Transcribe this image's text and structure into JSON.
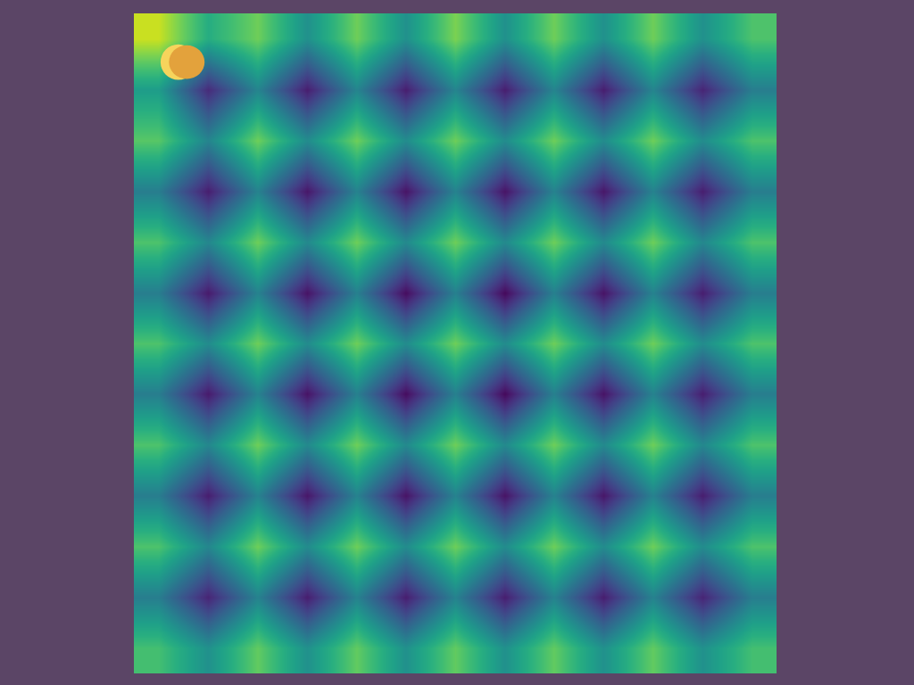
{
  "chart_data": {
    "type": "heatmap",
    "cells": [
      [
        0.92,
        0.62,
        0.78,
        0.5,
        0.78,
        0.5,
        0.8,
        0.5,
        0.78,
        0.5,
        0.78,
        0.5,
        0.72
      ],
      [
        0.55,
        0.12,
        0.45,
        0.08,
        0.45,
        0.08,
        0.45,
        0.08,
        0.45,
        0.08,
        0.45,
        0.1,
        0.42
      ],
      [
        0.74,
        0.45,
        0.78,
        0.48,
        0.78,
        0.48,
        0.78,
        0.48,
        0.78,
        0.48,
        0.78,
        0.48,
        0.72
      ],
      [
        0.42,
        0.08,
        0.44,
        0.06,
        0.44,
        0.05,
        0.44,
        0.05,
        0.44,
        0.06,
        0.44,
        0.08,
        0.42
      ],
      [
        0.72,
        0.46,
        0.78,
        0.47,
        0.78,
        0.47,
        0.78,
        0.47,
        0.78,
        0.47,
        0.78,
        0.46,
        0.72
      ],
      [
        0.42,
        0.07,
        0.44,
        0.05,
        0.43,
        0.03,
        0.43,
        0.02,
        0.43,
        0.05,
        0.44,
        0.08,
        0.42
      ],
      [
        0.72,
        0.48,
        0.78,
        0.48,
        0.78,
        0.48,
        0.78,
        0.48,
        0.78,
        0.48,
        0.78,
        0.48,
        0.72
      ],
      [
        0.42,
        0.07,
        0.44,
        0.05,
        0.43,
        0.03,
        0.43,
        0.02,
        0.43,
        0.05,
        0.44,
        0.08,
        0.42
      ],
      [
        0.72,
        0.46,
        0.78,
        0.47,
        0.78,
        0.47,
        0.78,
        0.47,
        0.78,
        0.47,
        0.78,
        0.46,
        0.72
      ],
      [
        0.42,
        0.08,
        0.44,
        0.06,
        0.44,
        0.05,
        0.44,
        0.05,
        0.44,
        0.06,
        0.44,
        0.08,
        0.42
      ],
      [
        0.72,
        0.46,
        0.78,
        0.48,
        0.78,
        0.48,
        0.78,
        0.48,
        0.78,
        0.48,
        0.78,
        0.48,
        0.72
      ],
      [
        0.42,
        0.1,
        0.44,
        0.08,
        0.44,
        0.08,
        0.44,
        0.08,
        0.44,
        0.08,
        0.44,
        0.1,
        0.42
      ],
      [
        0.7,
        0.5,
        0.76,
        0.5,
        0.76,
        0.5,
        0.76,
        0.5,
        0.76,
        0.5,
        0.76,
        0.5,
        0.7
      ]
    ],
    "zlim": [
      0,
      1
    ],
    "color": "Viridis",
    "tick_labels": false,
    "grid": false
  }
}
